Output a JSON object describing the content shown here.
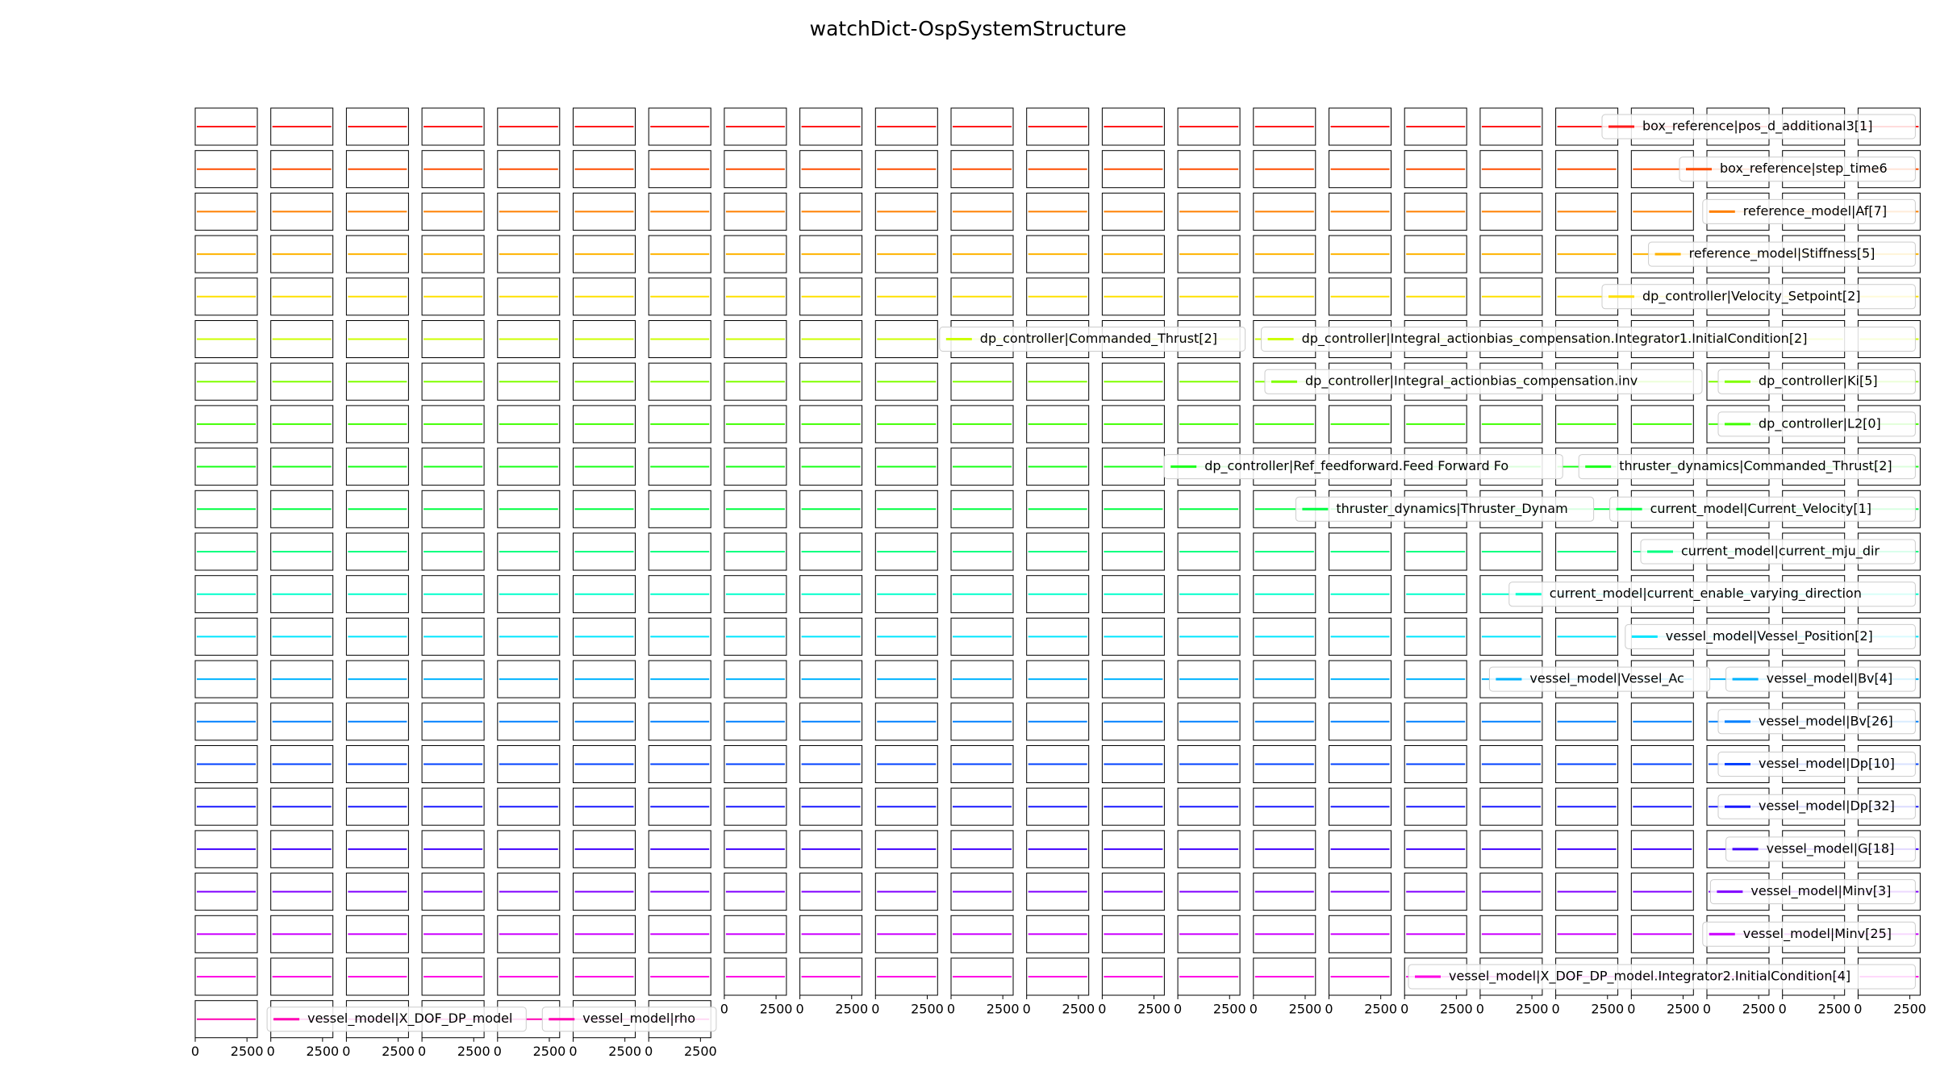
{
  "chart_data": {
    "type": "small-multiples",
    "title": "watchDict-OspSystemStructure",
    "xticks": [
      0,
      2500
    ],
    "xlim": [
      0,
      3000
    ],
    "rows": [
      {
        "color": "#ff1a1a",
        "legends": [
          "box_reference|pos_d_additional3[1]"
        ]
      },
      {
        "color": "#ff4d00",
        "legends": [
          "box_reference|step_time6"
        ]
      },
      {
        "color": "#ff8000",
        "legends": [
          "reference_model|Af[7]"
        ]
      },
      {
        "color": "#ffb300",
        "legends": [
          "reference_model|Stiffness[5]"
        ]
      },
      {
        "color": "#ffe000",
        "legends": [
          "dp_controller|Velocity_Setpoint[2]"
        ]
      },
      {
        "color": "#ccff00",
        "legends": [
          "dp_controller|Commanded_Thrust[2]",
          "dp_controller|Integral_actionbias_compensation.Integrator1.InitialCondition[2]"
        ]
      },
      {
        "color": "#80ff00",
        "legends": [
          "dp_controller|Integral_actionbias_compensation.inv",
          "dp_controller|Ki[5]"
        ]
      },
      {
        "color": "#40ff00",
        "legends": [
          "dp_controller|L2[0]"
        ]
      },
      {
        "color": "#1aff1a",
        "legends": [
          "dp_controller|Ref_feedforward.Feed Forward Fo",
          "thruster_dynamics|Commanded_Thrust[2]"
        ]
      },
      {
        "color": "#00ff40",
        "legends": [
          "thruster_dynamics|Thruster_Dynam",
          "current_model|Current_Velocity[1]"
        ]
      },
      {
        "color": "#00ff80",
        "legends": [
          "current_model|current_mju_dir"
        ]
      },
      {
        "color": "#00ffcc",
        "legends": [
          "current_model|current_enable_varying_direction"
        ]
      },
      {
        "color": "#00e5ff",
        "legends": [
          "vessel_model|Vessel_Position[2]"
        ]
      },
      {
        "color": "#00b3ff",
        "legends": [
          "vessel_model|Vessel_Ac",
          "vessel_model|Bv[4]"
        ]
      },
      {
        "color": "#0080ff",
        "legends": [
          "vessel_model|Bv[26]"
        ]
      },
      {
        "color": "#0040ff",
        "legends": [
          "vessel_model|Dp[10]"
        ]
      },
      {
        "color": "#1a1aff",
        "legends": [
          "vessel_model|Dp[32]"
        ]
      },
      {
        "color": "#4000ff",
        "legends": [
          "vessel_model|G[18]"
        ]
      },
      {
        "color": "#8000ff",
        "legends": [
          "vessel_model|Minv[3]"
        ]
      },
      {
        "color": "#cc00ff",
        "legends": [
          "vessel_model|Minv[25]"
        ]
      },
      {
        "color": "#ff00e5",
        "legends": [
          "vessel_model|X_DOF_DP_model.Integrator2.InitialCondition[4]"
        ]
      },
      {
        "color": "#ff00b3",
        "legends": [
          "vessel_model|X_DOF_DP_model",
          "vessel_model|rho"
        ]
      }
    ]
  }
}
